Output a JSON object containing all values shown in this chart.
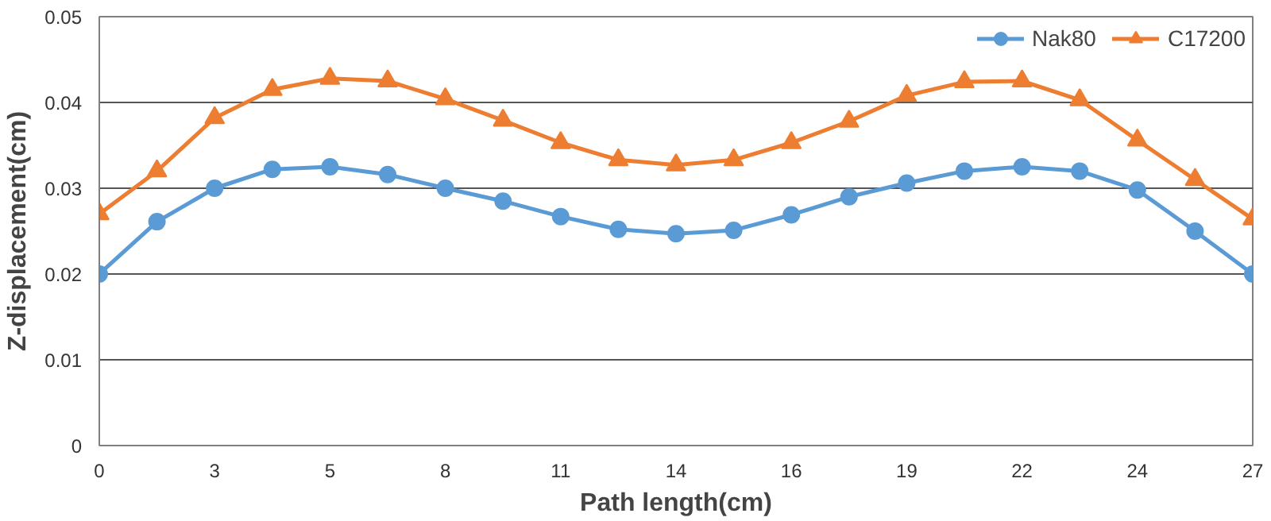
{
  "chart_data": {
    "type": "line",
    "xlabel": "Path length(cm)",
    "ylabel": "Z-displacement(cm)",
    "categories": [
      "0",
      null,
      "3",
      null,
      "5",
      null,
      "8",
      null,
      "11",
      null,
      "14",
      null,
      "16",
      null,
      "19",
      null,
      "22",
      null,
      "24",
      null,
      "27"
    ],
    "series": [
      {
        "name": "Nak80",
        "color": "#5b9bd5",
        "marker": "circle",
        "values": [
          0.02,
          0.0261,
          0.03,
          0.0322,
          0.0325,
          0.0316,
          0.03,
          0.0285,
          0.0267,
          0.0252,
          0.0247,
          0.0251,
          0.0269,
          0.029,
          0.0306,
          0.032,
          0.0325,
          0.032,
          0.0298,
          0.025,
          0.02
        ]
      },
      {
        "name": "C17200",
        "color": "#ed7d31",
        "marker": "triangle",
        "values": [
          0.027,
          0.032,
          0.0382,
          0.0415,
          0.0428,
          0.0425,
          0.0404,
          0.0379,
          0.0353,
          0.0333,
          0.0327,
          0.0333,
          0.0353,
          0.0378,
          0.0408,
          0.0424,
          0.0425,
          0.0403,
          0.0356,
          0.031,
          0.0264
        ]
      }
    ],
    "ylim": [
      0,
      0.05
    ],
    "yticks": [
      {
        "value": 0,
        "label": "0"
      },
      0.01,
      0.02,
      0.03,
      0.04,
      0.05
    ],
    "grid": "y",
    "legend": "top right"
  }
}
